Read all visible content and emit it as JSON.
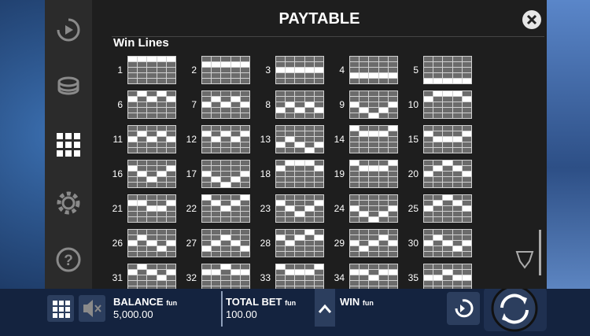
{
  "header": {
    "title": "PAYTABLE"
  },
  "section": {
    "title": "Win Lines"
  },
  "lines": [
    1,
    2,
    3,
    4,
    5,
    6,
    7,
    8,
    9,
    10,
    11,
    12,
    13,
    14,
    15,
    16,
    17,
    18,
    19,
    20,
    21,
    22,
    23,
    24,
    25,
    26,
    27,
    28,
    29,
    30,
    31,
    32,
    33,
    34,
    35
  ],
  "footer": {
    "balance": {
      "label": "BALANCE",
      "unit": "fun",
      "value": "5,000.00"
    },
    "total_bet": {
      "label": "TOTAL BET",
      "unit": "fun",
      "value": "100.00"
    },
    "win": {
      "label": "WIN",
      "unit": "fun"
    }
  }
}
